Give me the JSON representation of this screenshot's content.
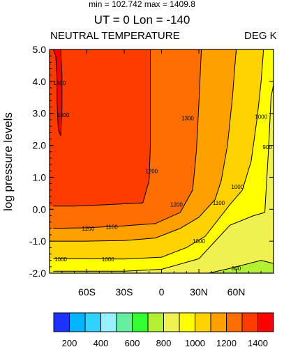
{
  "header": {
    "minmax": "min = 102.742   max = 1409.8",
    "subtitle": "UT = 0 Lon = -140",
    "field_name": "NEUTRAL TEMPERATURE",
    "units": "DEG K"
  },
  "chart_data": {
    "type": "heatmap",
    "subtype": "filled-contour",
    "title": "NEUTRAL TEMPERATURE",
    "units": "DEG K",
    "ylabel": "log pressure levels",
    "xlabel": "",
    "xlim": [
      -90,
      90
    ],
    "ylim": [
      -2.0,
      5.0
    ],
    "x_ticks": [
      {
        "value": -60,
        "label": "60S"
      },
      {
        "value": -30,
        "label": "30S"
      },
      {
        "value": 0,
        "label": "0"
      },
      {
        "value": 30,
        "label": "30N"
      },
      {
        "value": 60,
        "label": "60N"
      }
    ],
    "y_ticks": [
      {
        "value": 5.0,
        "label": "5.0"
      },
      {
        "value": 4.0,
        "label": "4.0"
      },
      {
        "value": 3.0,
        "label": "3.0"
      },
      {
        "value": 2.0,
        "label": "2.0"
      },
      {
        "value": 1.0,
        "label": "1.0"
      },
      {
        "value": 0.0,
        "label": "0.0"
      },
      {
        "value": -1.0,
        "label": "-1.0"
      },
      {
        "value": -2.0,
        "label": "-2.0"
      }
    ],
    "levels": [
      200,
      300,
      400,
      500,
      600,
      700,
      800,
      900,
      1000,
      1100,
      1200,
      1300,
      1400
    ],
    "colors": [
      "#1e32ff",
      "#00b4ff",
      "#32d2ff",
      "#96f0ff",
      "#64f0a0",
      "#32ff32",
      "#b4f032",
      "#f0f050",
      "#ffff00",
      "#ffd200",
      "#ffa000",
      "#ff6e00",
      "#ff3c00",
      "#ff0000"
    ],
    "colorbar_labels": [
      {
        "value": 200,
        "label": "200"
      },
      {
        "value": 400,
        "label": "400"
      },
      {
        "value": 600,
        "label": "600"
      },
      {
        "value": 800,
        "label": "800"
      },
      {
        "value": 1000,
        "label": "1000"
      },
      {
        "value": 1200,
        "label": "1200"
      },
      {
        "value": 1400,
        "label": "1400"
      }
    ],
    "contour_labels": [
      {
        "text": "1400",
        "x": -79,
        "y": 2.95
      },
      {
        "text": "1400",
        "x": -82,
        "y": 3.95
      },
      {
        "text": "1300",
        "x": 21,
        "y": 2.85
      },
      {
        "text": "1200",
        "x": -8,
        "y": 1.2
      },
      {
        "text": "1200",
        "x": -59,
        "y": -0.6
      },
      {
        "text": "1200",
        "x": 12,
        "y": 0.15
      },
      {
        "text": "1100",
        "x": 46,
        "y": 0.2
      },
      {
        "text": "1100",
        "x": -40,
        "y": -0.55
      },
      {
        "text": "1000",
        "x": 80,
        "y": 2.9
      },
      {
        "text": "1000",
        "x": 61,
        "y": 0.7
      },
      {
        "text": "1000",
        "x": 30,
        "y": -1.0
      },
      {
        "text": "1000",
        "x": -43,
        "y": -1.56
      },
      {
        "text": "1000",
        "x": -81,
        "y": -1.56
      },
      {
        "text": "900",
        "x": 85,
        "y": 1.95
      },
      {
        "text": "800",
        "x": 60,
        "y": -1.85
      }
    ],
    "contours": [
      {
        "level": 1400,
        "points": [
          [
            -87,
            5.0
          ],
          [
            -85,
            4.8
          ],
          [
            -84,
            4.1
          ],
          [
            -84,
            3.4
          ],
          [
            -83,
            2.5
          ],
          [
            -81,
            2.3
          ],
          [
            -80,
            3.2
          ],
          [
            -80,
            4.2
          ],
          [
            -81,
            5.0
          ]
        ]
      },
      {
        "level": 1300,
        "points": [
          [
            -87,
            0.1
          ],
          [
            -70,
            0.1
          ],
          [
            -40,
            0.15
          ],
          [
            -15,
            0.2
          ],
          [
            -10,
            0.9
          ],
          [
            -9,
            2.0
          ],
          [
            -9,
            3.5
          ],
          [
            -9,
            5.0
          ]
        ]
      },
      {
        "level": 1200,
        "points": [
          [
            -87,
            -0.6
          ],
          [
            -60,
            -0.58
          ],
          [
            -30,
            -0.52
          ],
          [
            -5,
            -0.45
          ],
          [
            15,
            -0.1
          ],
          [
            25,
            0.6
          ],
          [
            28,
            1.8
          ],
          [
            30,
            3.3
          ],
          [
            32,
            5.0
          ]
        ]
      },
      {
        "level": 1100,
        "points": [
          [
            -87,
            -1.0
          ],
          [
            -60,
            -1.0
          ],
          [
            -30,
            -0.98
          ],
          [
            -5,
            -0.9
          ],
          [
            15,
            -0.6
          ],
          [
            30,
            -0.25
          ],
          [
            43,
            0.3
          ],
          [
            48,
            0.9
          ],
          [
            53,
            2.0
          ],
          [
            57,
            3.5
          ],
          [
            60,
            5.0
          ]
        ]
      },
      {
        "level": 1000,
        "points": [
          [
            -87,
            -1.55
          ],
          [
            -60,
            -1.55
          ],
          [
            -30,
            -1.56
          ],
          [
            0,
            -1.5
          ],
          [
            20,
            -1.2
          ],
          [
            35,
            -0.85
          ],
          [
            55,
            0.15
          ],
          [
            65,
            0.6
          ],
          [
            72,
            1.5
          ],
          [
            77,
            2.9
          ],
          [
            80,
            4.0
          ],
          [
            82,
            5.0
          ]
        ]
      },
      {
        "level": 900,
        "points": [
          [
            -87,
            -1.94
          ],
          [
            -30,
            -1.94
          ],
          [
            0,
            -1.88
          ],
          [
            30,
            -1.55
          ],
          [
            55,
            -0.5
          ],
          [
            74,
            -0.2
          ],
          [
            83,
            -0.1
          ],
          [
            86,
            1.9
          ],
          [
            88,
            3.5
          ],
          [
            90,
            3.9
          ]
        ]
      },
      {
        "level": 800,
        "points": [
          [
            38,
            -2.0
          ],
          [
            55,
            -1.85
          ],
          [
            80,
            -1.6
          ],
          [
            90,
            -1.7
          ]
        ]
      }
    ]
  }
}
